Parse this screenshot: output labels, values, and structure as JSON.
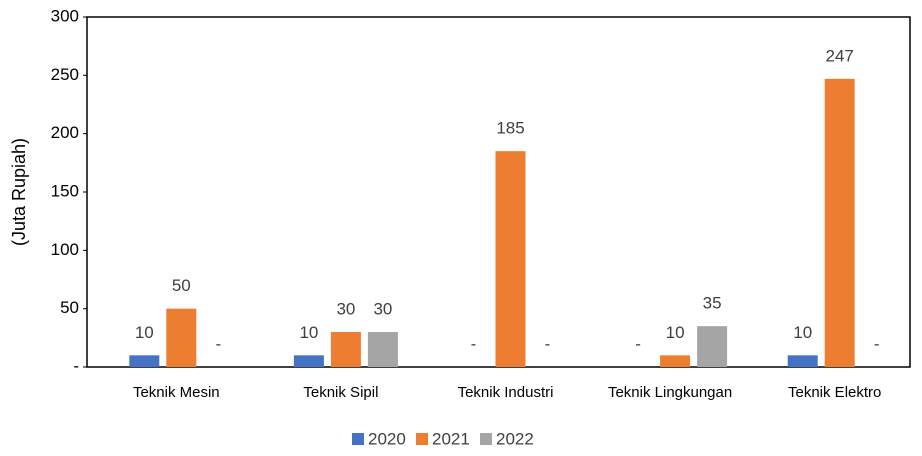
{
  "chart_data": {
    "type": "bar",
    "y_label": "(Juta Rupiah)",
    "categories": [
      "Teknik Mesin",
      "Teknik Sipil",
      "Teknik Industri",
      "Teknik Lingkungan",
      "Teknik Elektro"
    ],
    "series": [
      {
        "name": "2020",
        "color": "#4472c4",
        "values": [
          10,
          10,
          0,
          0,
          10
        ],
        "value_labels": [
          "10",
          "10",
          "-",
          "-",
          "10"
        ]
      },
      {
        "name": "2021",
        "color": "#ed7d31",
        "values": [
          50,
          30,
          185,
          10,
          247
        ],
        "value_labels": [
          "50",
          "30",
          "185",
          "10",
          "247"
        ]
      },
      {
        "name": "2022",
        "color": "#a5a5a5",
        "values": [
          0,
          30,
          0,
          35,
          0
        ],
        "value_labels": [
          "-",
          "30",
          "-",
          "35",
          "-"
        ]
      }
    ],
    "ylim": [
      0,
      300
    ],
    "yticks": [
      {
        "value": 0,
        "label": "-"
      },
      50,
      100,
      150,
      200,
      250,
      300
    ],
    "legend": "bottom"
  }
}
